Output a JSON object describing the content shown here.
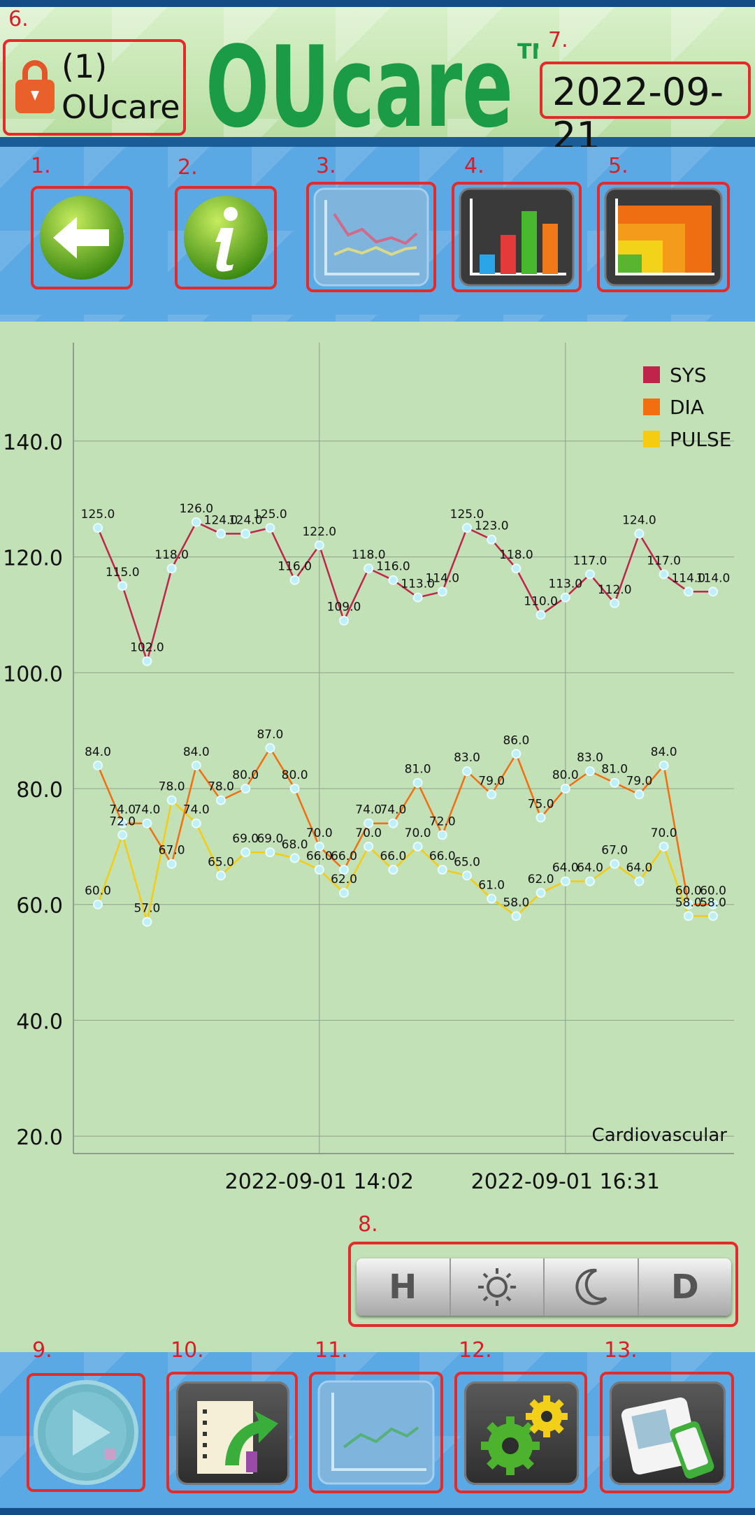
{
  "header": {
    "user_count": "(1)",
    "user_name": "OUcare",
    "logo_text": "OUcare",
    "trademark": "TM",
    "date": "2022-09-21"
  },
  "annotations": {
    "n1": "1.",
    "n2": "2.",
    "n3": "3.",
    "n4": "4.",
    "n5": "5.",
    "n6": "6.",
    "n7": "7.",
    "n8": "8.",
    "n9": "9.",
    "n10": "10.",
    "n11": "11.",
    "n12": "12.",
    "n13": "13."
  },
  "toolbar_top": {
    "icons": [
      "back-arrow-icon",
      "info-icon",
      "line-chart-icon",
      "bar-chart-icon",
      "area-chart-icon"
    ]
  },
  "filters": {
    "items": [
      "H",
      "day-sun-icon",
      "night-moon-icon",
      "D"
    ]
  },
  "toolbar_bottom": {
    "icons": [
      "play-icon",
      "export-report-icon",
      "trend-chart-icon",
      "settings-gears-icon",
      "device-sync-icon"
    ]
  },
  "colors": {
    "sys": "#c0244a",
    "dia": "#f36e0e",
    "pulse": "#f5cc12",
    "annotation": "#e52a2a"
  },
  "chart_data": {
    "type": "line",
    "ylim": [
      17,
      157
    ],
    "yticks": [
      20.0,
      40.0,
      60.0,
      80.0,
      100.0,
      120.0,
      140.0
    ],
    "ytick_labels": [
      "20.0",
      "40.0",
      "60.0",
      "80.0",
      "100.0",
      "120.0",
      "140.0"
    ],
    "xtick_labels": [
      "2022-09-01 14:02",
      "2022-09-01 16:31"
    ],
    "annotation": "Cardiovascular",
    "legend_position": "top-right",
    "series": [
      {
        "name": "SYS",
        "values": [
          125,
          115,
          102,
          118,
          126,
          124,
          124,
          125,
          116,
          122,
          109,
          118,
          116,
          113,
          114,
          125,
          123,
          118,
          110,
          113,
          117,
          112,
          124,
          117,
          114,
          114
        ]
      },
      {
        "name": "DIA",
        "values": [
          84,
          74,
          74,
          67,
          84,
          78,
          80,
          87,
          80,
          70,
          66,
          74,
          74,
          81,
          72,
          83,
          79,
          86,
          75,
          80,
          83,
          81,
          79,
          84,
          60,
          60
        ]
      },
      {
        "name": "PULSE",
        "values": [
          60,
          72,
          57,
          78,
          74,
          65,
          69,
          69,
          68,
          66,
          62,
          70,
          66,
          70,
          66,
          65,
          61,
          58,
          62,
          64,
          64,
          67,
          64,
          70,
          58,
          58
        ]
      }
    ],
    "labels": {
      "SYS": [
        "125.0",
        "115.0",
        "102.0",
        "118.0",
        "126.0",
        "124.0",
        "124.0",
        "125.0",
        "116.0",
        "122.0",
        "109.0",
        "118.0",
        "116.0",
        "113.0",
        "114.0",
        "125.0",
        "123.0",
        "118.0",
        "110.0",
        "113.0",
        "117.0",
        "112.0",
        "124.0",
        "117.0",
        "114.0",
        "114.0"
      ],
      "DIA": [
        "84.0",
        "74.0",
        "74.0",
        "67.0",
        "84.0",
        "78.0",
        "80.0",
        "87.0",
        "80.0",
        "70.0",
        "66.0",
        "74.0",
        "74.0",
        "81.0",
        "72.0",
        "83.0",
        "79.0",
        "86.0",
        "75.0",
        "80.0",
        "83.0",
        "81.0",
        "79.0",
        "84.0",
        "60.0",
        "60.0"
      ],
      "PULSE": [
        "60.0",
        "72.0",
        "57.0",
        "78.0",
        "74.0",
        "65.0",
        "69.0",
        "69.0",
        "68.0",
        "66.0",
        "62.0",
        "70.0",
        "66.0",
        "70.0",
        "66.0",
        "65.0",
        "61.0",
        "58.0",
        "62.0",
        "64.0",
        "64.0",
        "67.0",
        "64.0",
        "70.0",
        "58.0",
        "58.0"
      ]
    }
  }
}
